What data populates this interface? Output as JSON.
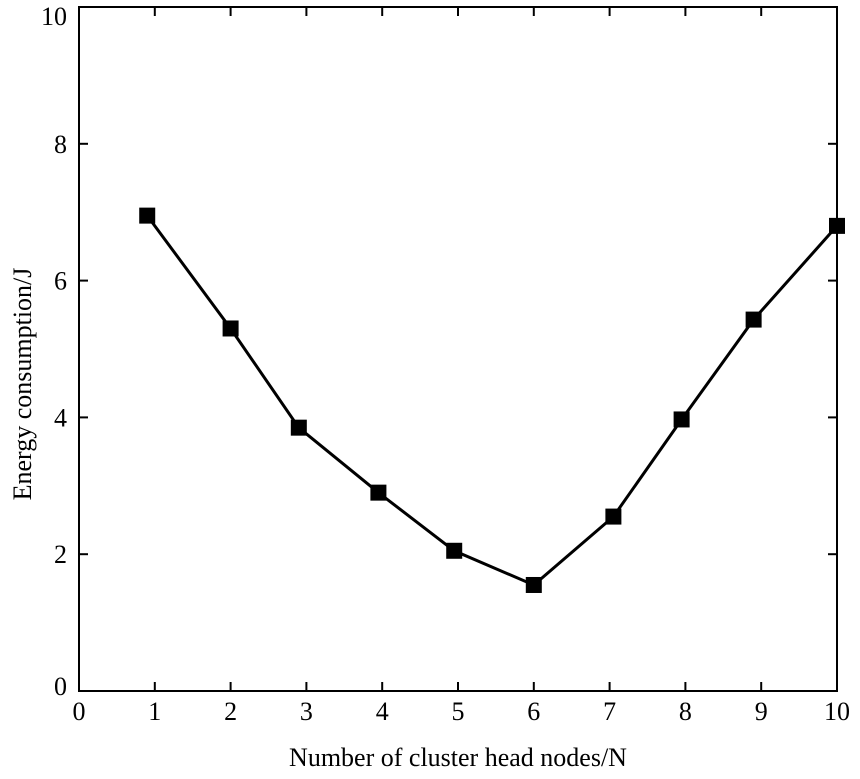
{
  "chart_data": {
    "type": "line",
    "title": "",
    "xlabel": "Number of cluster head nodes/N",
    "ylabel": "Energy consumption/J",
    "xlim": [
      0,
      10
    ],
    "ylim": [
      0,
      10
    ],
    "x_ticks": [
      "0",
      "1",
      "2",
      "3",
      "4",
      "5",
      "6",
      "7",
      "8",
      "9",
      "10"
    ],
    "y_ticks": [
      "0",
      "2",
      "4",
      "6",
      "8",
      "10"
    ],
    "grid": false,
    "series": [
      {
        "x": [
          0.9,
          2.0,
          2.9,
          3.95,
          4.95,
          6.0,
          7.05,
          7.95,
          8.9,
          10.0
        ],
        "values": [
          6.95,
          5.3,
          3.85,
          2.9,
          2.05,
          1.55,
          2.55,
          3.97,
          5.43,
          6.8
        ],
        "color": "#000000",
        "marker": "square"
      }
    ]
  }
}
